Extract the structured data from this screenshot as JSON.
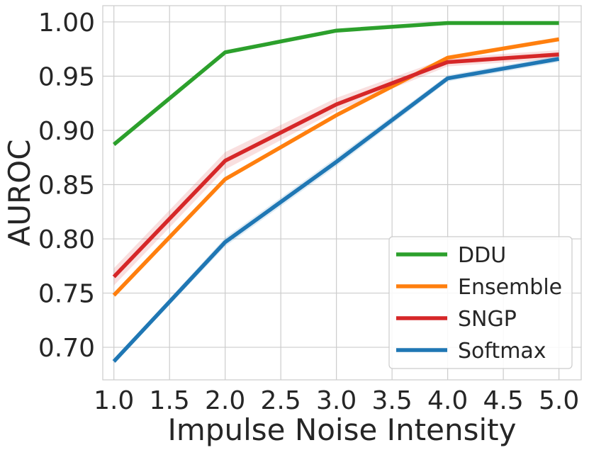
{
  "chart_data": {
    "type": "line",
    "title": "",
    "xlabel": "Impulse Noise Intensity",
    "ylabel": "AUROC",
    "xlim": [
      0.9,
      5.2
    ],
    "ylim": [
      0.67,
      1.015
    ],
    "x_ticks": [
      1.0,
      1.5,
      2.0,
      2.5,
      3.0,
      3.5,
      4.0,
      4.5,
      5.0
    ],
    "x_tick_labels": [
      "1.0",
      "1.5",
      "2.0",
      "2.5",
      "3.0",
      "3.5",
      "4.0",
      "4.5",
      "5.0"
    ],
    "y_ticks": [
      0.7,
      0.75,
      0.8,
      0.85,
      0.9,
      0.95,
      1.0
    ],
    "y_tick_labels": [
      "0.70",
      "0.75",
      "0.80",
      "0.85",
      "0.90",
      "0.95",
      "1.00"
    ],
    "grid": true,
    "legend_position": "bottom-right",
    "x": [
      1.0,
      2.0,
      3.0,
      4.0,
      5.0
    ],
    "series": [
      {
        "name": "DDU",
        "color": "#2ca02c",
        "values": [
          0.887,
          0.972,
          0.992,
          0.999,
          0.999
        ],
        "band": [
          0.001,
          0.001,
          0.001,
          0.0005,
          0.0005
        ]
      },
      {
        "name": "Ensemble",
        "color": "#ff7f0e",
        "values": [
          0.748,
          0.855,
          0.914,
          0.967,
          0.984
        ],
        "band": [
          0.002,
          0.002,
          0.002,
          0.002,
          0.002
        ]
      },
      {
        "name": "SNGP",
        "color": "#d62728",
        "values": [
          0.765,
          0.872,
          0.924,
          0.963,
          0.97
        ],
        "band": [
          0.008,
          0.008,
          0.006,
          0.004,
          0.004
        ]
      },
      {
        "name": "Softmax",
        "color": "#1f77b4",
        "values": [
          0.687,
          0.797,
          0.871,
          0.948,
          0.966
        ],
        "band": [
          0.002,
          0.004,
          0.004,
          0.003,
          0.003
        ]
      }
    ]
  }
}
